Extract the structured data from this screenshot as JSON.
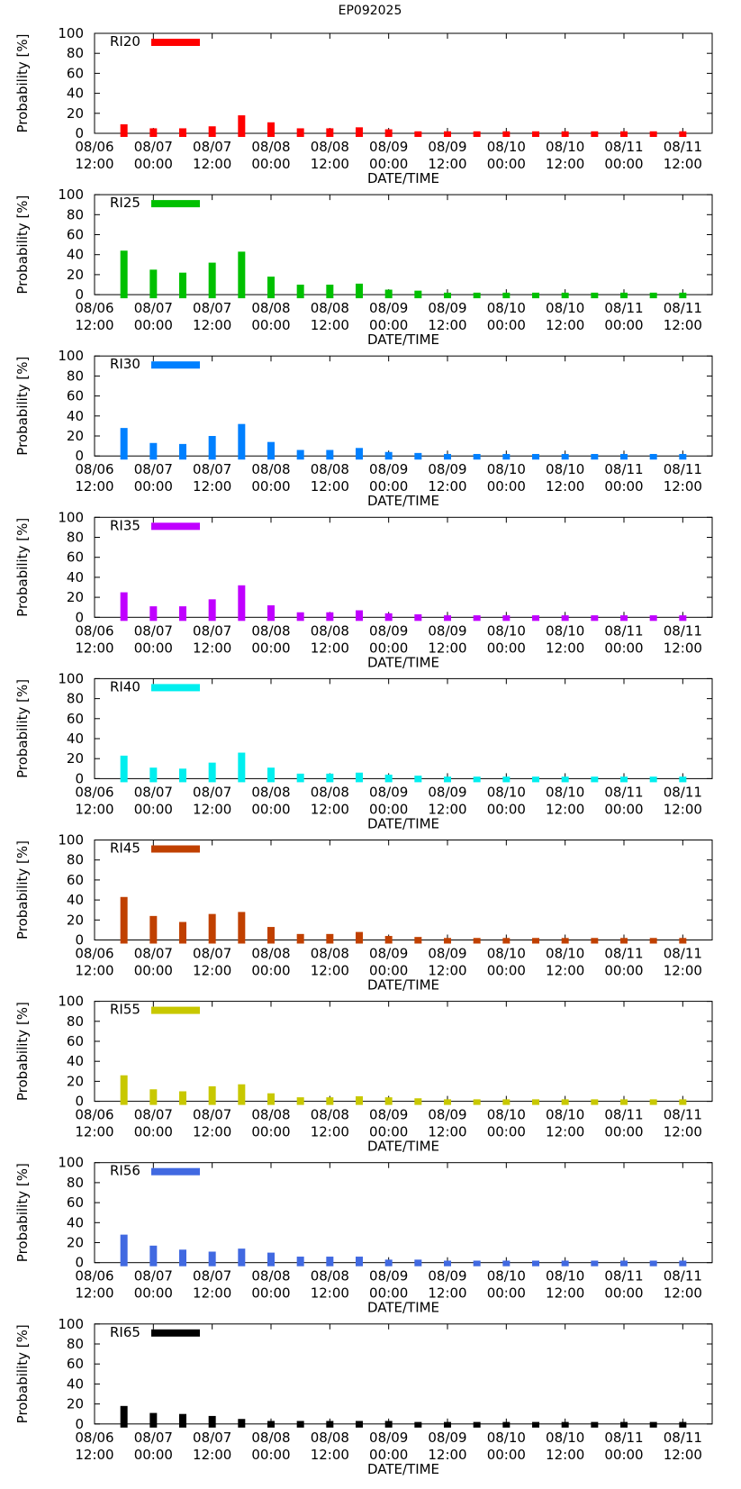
{
  "title": "EP092025",
  "chart_data": {
    "type": "bar",
    "title": "EP092025",
    "xlabel": "DATE/TIME",
    "ylabel": "Probability [%]",
    "ylim": [
      0,
      100
    ],
    "yticks": [
      0,
      20,
      40,
      60,
      80,
      100
    ],
    "x_tick_labels": [
      [
        "08/06",
        "12:00"
      ],
      [
        "08/07",
        "00:00"
      ],
      [
        "08/07",
        "12:00"
      ],
      [
        "08/08",
        "00:00"
      ],
      [
        "08/08",
        "12:00"
      ],
      [
        "08/09",
        "00:00"
      ],
      [
        "08/09",
        "12:00"
      ],
      [
        "08/10",
        "00:00"
      ],
      [
        "08/10",
        "12:00"
      ],
      [
        "08/11",
        "00:00"
      ],
      [
        "08/11",
        "12:00"
      ]
    ],
    "x_hours": [
      6,
      12,
      18,
      24,
      30,
      36,
      42,
      48,
      54,
      60,
      66,
      72,
      78,
      84,
      90,
      96,
      102,
      108,
      114,
      120
    ],
    "series": [
      {
        "name": "RI20",
        "color": "#ff0000",
        "values": [
          9,
          5,
          5,
          7,
          18,
          11,
          5,
          5,
          6,
          4,
          2,
          2,
          2,
          2,
          2,
          2,
          2,
          2,
          2,
          2
        ]
      },
      {
        "name": "RI25",
        "color": "#00c000",
        "values": [
          44,
          25,
          22,
          32,
          43,
          18,
          10,
          10,
          11,
          5,
          4,
          2,
          2,
          2,
          2,
          2,
          2,
          2,
          2,
          2
        ]
      },
      {
        "name": "RI30",
        "color": "#0080ff",
        "values": [
          28,
          13,
          12,
          20,
          32,
          14,
          6,
          6,
          8,
          4,
          3,
          2,
          2,
          2,
          2,
          2,
          2,
          2,
          2,
          2
        ]
      },
      {
        "name": "RI35",
        "color": "#c000ff",
        "values": [
          25,
          11,
          11,
          18,
          32,
          12,
          5,
          5,
          7,
          4,
          3,
          2,
          2,
          2,
          2,
          2,
          2,
          2,
          2,
          2
        ]
      },
      {
        "name": "RI40",
        "color": "#00eeee",
        "values": [
          23,
          11,
          10,
          16,
          26,
          11,
          5,
          5,
          6,
          4,
          3,
          2,
          2,
          2,
          2,
          2,
          2,
          2,
          2,
          2
        ]
      },
      {
        "name": "RI45",
        "color": "#c04000",
        "values": [
          43,
          24,
          18,
          26,
          28,
          13,
          6,
          6,
          8,
          4,
          3,
          2,
          2,
          2,
          2,
          2,
          2,
          2,
          2,
          2
        ]
      },
      {
        "name": "RI55",
        "color": "#c8c800",
        "values": [
          26,
          12,
          10,
          15,
          17,
          8,
          4,
          4,
          5,
          4,
          3,
          2,
          2,
          2,
          2,
          2,
          2,
          2,
          2,
          2
        ]
      },
      {
        "name": "RI56",
        "color": "#4169e1",
        "values": [
          28,
          17,
          13,
          11,
          14,
          10,
          6,
          6,
          6,
          3,
          3,
          2,
          2,
          2,
          2,
          2,
          2,
          2,
          2,
          2
        ]
      },
      {
        "name": "RI65",
        "color": "#000000",
        "values": [
          18,
          11,
          10,
          8,
          5,
          3,
          3,
          3,
          3,
          3,
          2,
          2,
          2,
          2,
          2,
          2,
          2,
          2,
          2,
          2
        ]
      }
    ]
  }
}
